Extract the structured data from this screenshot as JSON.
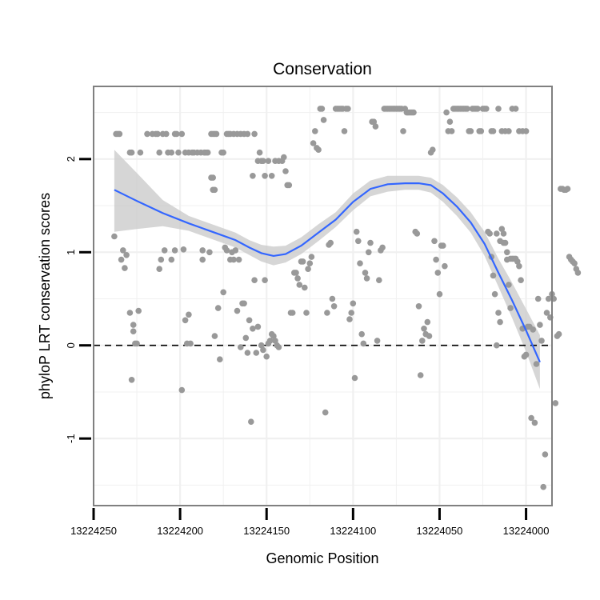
{
  "chart_data": {
    "type": "scatter",
    "title": "Conservation",
    "xlabel": "Genomic Position",
    "ylabel": "phyloP LRT conservation scores",
    "x_reversed": true,
    "xlim": [
      13224250,
      13223985
    ],
    "ylim": [
      -1.72,
      2.78
    ],
    "x_ticks": [
      13224250,
      13224200,
      13224150,
      13224100,
      13224050,
      13224000
    ],
    "x_tick_labels": [
      "13224250",
      "13224200",
      "13224150",
      "13224100",
      "13224050",
      "13224000"
    ],
    "y_ticks": [
      -1,
      0,
      1,
      2
    ],
    "y_tick_labels": [
      "-1",
      "0",
      "1",
      "2"
    ],
    "grid": true,
    "reference_line": {
      "y": 0,
      "style": "dashed"
    },
    "colors": {
      "points": "#999999",
      "smooth": "#3366ff",
      "ribbon": "#cccccc",
      "panel_border": "#808080",
      "grid": "#f0f0f0"
    },
    "points": [
      [
        13224237,
        2.27
      ],
      [
        13224236,
        2.27
      ],
      [
        13224235,
        2.27
      ],
      [
        13224229,
        2.07
      ],
      [
        13224228,
        2.07
      ],
      [
        13224223,
        2.07
      ],
      [
        13224219,
        2.27
      ],
      [
        13224216,
        2.27
      ],
      [
        13224214,
        2.27
      ],
      [
        13224213,
        2.27
      ],
      [
        13224212,
        2.07
      ],
      [
        13224210,
        2.27
      ],
      [
        13224208,
        2.27
      ],
      [
        13224207,
        2.07
      ],
      [
        13224205,
        2.07
      ],
      [
        13224203,
        2.27
      ],
      [
        13224202,
        2.27
      ],
      [
        13224201,
        2.07
      ],
      [
        13224199,
        2.27
      ],
      [
        13224197,
        2.07
      ],
      [
        13224195,
        2.07
      ],
      [
        13224193,
        2.07
      ],
      [
        13224192,
        2.07
      ],
      [
        13224190,
        2.07
      ],
      [
        13224188,
        2.07
      ],
      [
        13224186,
        2.07
      ],
      [
        13224185,
        2.07
      ],
      [
        13224184,
        2.07
      ],
      [
        13224182,
        2.27
      ],
      [
        13224181,
        2.27
      ],
      [
        13224180,
        2.27
      ],
      [
        13224179,
        2.27
      ],
      [
        13224176,
        2.07
      ],
      [
        13224175,
        2.07
      ],
      [
        13224173,
        2.27
      ],
      [
        13224172,
        2.27
      ],
      [
        13224171,
        2.27
      ],
      [
        13224169,
        2.27
      ],
      [
        13224167,
        2.27
      ],
      [
        13224165,
        2.27
      ],
      [
        13224163,
        2.27
      ],
      [
        13224161,
        2.27
      ],
      [
        13224157,
        2.27
      ],
      [
        13224154,
        2.07
      ],
      [
        13224238,
        1.17
      ],
      [
        13224234,
        0.92
      ],
      [
        13224233,
        1.02
      ],
      [
        13224232,
        0.83
      ],
      [
        13224231,
        0.97
      ],
      [
        13224229,
        0.35
      ],
      [
        13224228,
        -0.37
      ],
      [
        13224227,
        0.15
      ],
      [
        13224226,
        0.02
      ],
      [
        13224225,
        0.02
      ],
      [
        13224224,
        0.37
      ],
      [
        13224227,
        0.22
      ],
      [
        13224212,
        0.82
      ],
      [
        13224211,
        0.92
      ],
      [
        13224209,
        1.02
      ],
      [
        13224205,
        0.92
      ],
      [
        13224203,
        1.02
      ],
      [
        13224199,
        -0.48
      ],
      [
        13224198,
        1.03
      ],
      [
        13224197,
        0.27
      ],
      [
        13224196,
        0.02
      ],
      [
        13224195,
        0.33
      ],
      [
        13224194,
        0.02
      ],
      [
        13224187,
        1.02
      ],
      [
        13224187,
        0.92
      ],
      [
        13224183,
        1.0
      ],
      [
        13224182,
        1.8
      ],
      [
        13224181,
        1.8
      ],
      [
        13224181,
        1.67
      ],
      [
        13224180,
        1.67
      ],
      [
        13224180,
        0.1
      ],
      [
        13224178,
        0.4
      ],
      [
        13224177,
        -0.15
      ],
      [
        13224175,
        0.57
      ],
      [
        13224174,
        1.05
      ],
      [
        13224173,
        1.02
      ],
      [
        13224171,
        0.92
      ],
      [
        13224170,
        1.0
      ],
      [
        13224169,
        0.92
      ],
      [
        13224168,
        1.02
      ],
      [
        13224167,
        0.37
      ],
      [
        13224166,
        0.92
      ],
      [
        13224165,
        -0.02
      ],
      [
        13224164,
        0.45
      ],
      [
        13224163,
        0.45
      ],
      [
        13224162,
        0.08
      ],
      [
        13224161,
        -0.08
      ],
      [
        13224160,
        0.27
      ],
      [
        13224159,
        -0.82
      ],
      [
        13224158,
        0.18
      ],
      [
        13224157,
        0.7
      ],
      [
        13224156,
        -0.08
      ],
      [
        13224155,
        0.2
      ],
      [
        13224153,
        0.0
      ],
      [
        13224152,
        -0.05
      ],
      [
        13224151,
        0.7
      ],
      [
        13224150,
        -0.12
      ],
      [
        13224149,
        0.02
      ],
      [
        13224148,
        0.05
      ],
      [
        13224147,
        0.12
      ],
      [
        13224146,
        0.1
      ],
      [
        13224145,
        0.05
      ],
      [
        13224144,
        0.0
      ],
      [
        13224143,
        -0.02
      ],
      [
        13224158,
        1.82
      ],
      [
        13224155,
        1.98
      ],
      [
        13224153,
        1.98
      ],
      [
        13224152,
        1.98
      ],
      [
        13224151,
        1.82
      ],
      [
        13224149,
        1.98
      ],
      [
        13224147,
        1.82
      ],
      [
        13224145,
        1.98
      ],
      [
        13224143,
        1.98
      ],
      [
        13224141,
        1.98
      ],
      [
        13224140,
        2.02
      ],
      [
        13224139,
        1.87
      ],
      [
        13224138,
        1.72
      ],
      [
        13224137,
        1.72
      ],
      [
        13224136,
        0.35
      ],
      [
        13224135,
        0.35
      ],
      [
        13224134,
        0.78
      ],
      [
        13224133,
        0.78
      ],
      [
        13224132,
        0.72
      ],
      [
        13224131,
        0.65
      ],
      [
        13224130,
        0.9
      ],
      [
        13224129,
        0.9
      ],
      [
        13224128,
        0.62
      ],
      [
        13224127,
        0.35
      ],
      [
        13224126,
        0.82
      ],
      [
        13224125,
        0.88
      ],
      [
        13224124,
        0.95
      ],
      [
        13224123,
        2.17
      ],
      [
        13224122,
        2.3
      ],
      [
        13224121,
        2.12
      ],
      [
        13224120,
        2.1
      ],
      [
        13224119,
        2.54
      ],
      [
        13224118,
        2.54
      ],
      [
        13224117,
        2.42
      ],
      [
        13224116,
        -0.72
      ],
      [
        13224115,
        0.35
      ],
      [
        13224114,
        1.08
      ],
      [
        13224113,
        1.1
      ],
      [
        13224112,
        0.5
      ],
      [
        13224111,
        0.42
      ],
      [
        13224110,
        2.54
      ],
      [
        13224109,
        2.54
      ],
      [
        13224108,
        2.54
      ],
      [
        13224107,
        2.54
      ],
      [
        13224106,
        2.54
      ],
      [
        13224105,
        2.3
      ],
      [
        13224104,
        2.54
      ],
      [
        13224103,
        2.54
      ],
      [
        13224102,
        0.28
      ],
      [
        13224101,
        0.35
      ],
      [
        13224100,
        0.45
      ],
      [
        13224099,
        -0.35
      ],
      [
        13224098,
        1.22
      ],
      [
        13224097,
        1.12
      ],
      [
        13224096,
        0.88
      ],
      [
        13224095,
        0.12
      ],
      [
        13224094,
        0.02
      ],
      [
        13224093,
        0.78
      ],
      [
        13224092,
        0.72
      ],
      [
        13224091,
        1.0
      ],
      [
        13224090,
        1.1
      ],
      [
        13224089,
        2.4
      ],
      [
        13224088,
        2.4
      ],
      [
        13224087,
        2.35
      ],
      [
        13224086,
        0.05
      ],
      [
        13224085,
        0.7
      ],
      [
        13224084,
        1.02
      ],
      [
        13224083,
        1.05
      ],
      [
        13224082,
        2.54
      ],
      [
        13224081,
        2.54
      ],
      [
        13224080,
        2.54
      ],
      [
        13224079,
        2.54
      ],
      [
        13224078,
        2.54
      ],
      [
        13224077,
        2.54
      ],
      [
        13224076,
        2.54
      ],
      [
        13224075,
        2.54
      ],
      [
        13224074,
        2.54
      ],
      [
        13224073,
        2.54
      ],
      [
        13224072,
        2.54
      ],
      [
        13224071,
        2.3
      ],
      [
        13224070,
        2.54
      ],
      [
        13224069,
        2.5
      ],
      [
        13224068,
        2.5
      ],
      [
        13224067,
        2.5
      ],
      [
        13224066,
        2.5
      ],
      [
        13224065,
        2.5
      ],
      [
        13224064,
        1.22
      ],
      [
        13224063,
        1.2
      ],
      [
        13224062,
        0.42
      ],
      [
        13224061,
        -0.32
      ],
      [
        13224060,
        0.05
      ],
      [
        13224059,
        0.18
      ],
      [
        13224058,
        0.12
      ],
      [
        13224057,
        0.25
      ],
      [
        13224056,
        0.1
      ],
      [
        13224055,
        2.07
      ],
      [
        13224054,
        2.1
      ],
      [
        13224053,
        1.12
      ],
      [
        13224052,
        0.92
      ],
      [
        13224051,
        0.78
      ],
      [
        13224050,
        0.55
      ],
      [
        13224049,
        1.07
      ],
      [
        13224048,
        1.07
      ],
      [
        13224047,
        0.85
      ],
      [
        13224046,
        2.5
      ],
      [
        13224045,
        2.3
      ],
      [
        13224044,
        2.4
      ],
      [
        13224043,
        2.3
      ],
      [
        13224042,
        2.54
      ],
      [
        13224041,
        2.54
      ],
      [
        13224040,
        2.54
      ],
      [
        13224039,
        2.54
      ],
      [
        13224038,
        2.54
      ],
      [
        13224037,
        2.54
      ],
      [
        13224036,
        2.54
      ],
      [
        13224035,
        2.54
      ],
      [
        13224034,
        2.54
      ],
      [
        13224033,
        2.3
      ],
      [
        13224032,
        2.3
      ],
      [
        13224031,
        2.54
      ],
      [
        13224030,
        2.54
      ],
      [
        13224029,
        2.54
      ],
      [
        13224028,
        2.54
      ],
      [
        13224027,
        2.3
      ],
      [
        13224026,
        2.3
      ],
      [
        13224025,
        2.54
      ],
      [
        13224024,
        2.54
      ],
      [
        13224023,
        2.54
      ],
      [
        13224022,
        1.22
      ],
      [
        13224021,
        1.2
      ],
      [
        13224020,
        0.95
      ],
      [
        13224019,
        0.75
      ],
      [
        13224018,
        0.55
      ],
      [
        13224017,
        0.0
      ],
      [
        13224016,
        0.35
      ],
      [
        13224015,
        0.25
      ],
      [
        13224014,
        1.25
      ],
      [
        13224013,
        1.2
      ],
      [
        13224012,
        1.1
      ],
      [
        13224011,
        0.92
      ],
      [
        13224010,
        0.65
      ],
      [
        13224009,
        0.4
      ],
      [
        13224020,
        2.3
      ],
      [
        13224019,
        2.3
      ],
      [
        13224016,
        2.54
      ],
      [
        13224014,
        2.3
      ],
      [
        13224012,
        2.3
      ],
      [
        13224010,
        2.3
      ],
      [
        13224008,
        2.54
      ],
      [
        13224006,
        2.54
      ],
      [
        13224004,
        2.3
      ],
      [
        13224002,
        2.3
      ],
      [
        13224000,
        2.3
      ],
      [
        13224017,
        1.2
      ],
      [
        13224015,
        1.12
      ],
      [
        13224013,
        1.1
      ],
      [
        13224011,
        1.0
      ],
      [
        13224009,
        0.93
      ],
      [
        13224008,
        0.93
      ],
      [
        13224007,
        0.93
      ],
      [
        13224006,
        0.93
      ],
      [
        13224005,
        0.9
      ],
      [
        13224004,
        0.85
      ],
      [
        13224003,
        0.7
      ],
      [
        13224002,
        0.18
      ],
      [
        13224001,
        -0.12
      ],
      [
        13224000,
        -0.1
      ],
      [
        13223999,
        0.2
      ],
      [
        13223998,
        0.2
      ],
      [
        13223997,
        -0.78
      ],
      [
        13223996,
        0.17
      ],
      [
        13223995,
        -0.83
      ],
      [
        13223994,
        -0.2
      ],
      [
        13223993,
        0.5
      ],
      [
        13223992,
        0.22
      ],
      [
        13223991,
        0.05
      ],
      [
        13223990,
        -1.52
      ],
      [
        13223989,
        -1.17
      ],
      [
        13223988,
        0.35
      ],
      [
        13223987,
        0.5
      ],
      [
        13223986,
        0.3
      ],
      [
        13223985,
        0.55
      ],
      [
        13223984,
        0.5
      ],
      [
        13223983,
        -0.62
      ],
      [
        13223982,
        0.1
      ],
      [
        13223981,
        0.12
      ],
      [
        13223980,
        1.68
      ],
      [
        13223979,
        1.68
      ],
      [
        13223978,
        1.67
      ],
      [
        13223977,
        1.67
      ],
      [
        13223976,
        1.68
      ],
      [
        13223975,
        0.95
      ],
      [
        13223974,
        0.92
      ],
      [
        13223973,
        0.9
      ],
      [
        13223972,
        0.88
      ],
      [
        13223971,
        0.82
      ],
      [
        13223970,
        0.78
      ]
    ],
    "smooth": {
      "x": [
        13224238,
        13224225,
        13224210,
        13224195,
        13224180,
        13224168,
        13224160,
        13224153,
        13224146,
        13224139,
        13224130,
        13224120,
        13224110,
        13224100,
        13224090,
        13224080,
        13224070,
        13224062,
        13224055,
        13224048,
        13224040,
        13224032,
        13224024,
        13224016,
        13224008,
        13224000,
        13223992
      ],
      "y": [
        1.67,
        1.55,
        1.42,
        1.31,
        1.21,
        1.13,
        1.05,
        0.99,
        0.96,
        0.98,
        1.07,
        1.21,
        1.35,
        1.54,
        1.68,
        1.73,
        1.74,
        1.74,
        1.72,
        1.63,
        1.49,
        1.32,
        1.09,
        0.78,
        0.48,
        0.16,
        -0.18
      ]
    },
    "ribbon": {
      "lower": [
        1.22,
        1.25,
        1.28,
        1.23,
        1.13,
        1.05,
        0.97,
        0.9,
        0.86,
        0.89,
        0.98,
        1.12,
        1.27,
        1.45,
        1.6,
        1.65,
        1.67,
        1.67,
        1.64,
        1.54,
        1.39,
        1.21,
        0.96,
        0.63,
        0.29,
        -0.07,
        -0.47
      ],
      "upper": [
        2.1,
        1.85,
        1.56,
        1.39,
        1.29,
        1.21,
        1.13,
        1.08,
        1.06,
        1.07,
        1.16,
        1.3,
        1.43,
        1.63,
        1.77,
        1.82,
        1.82,
        1.82,
        1.8,
        1.72,
        1.59,
        1.43,
        1.22,
        0.93,
        0.67,
        0.39,
        0.11
      ]
    }
  }
}
